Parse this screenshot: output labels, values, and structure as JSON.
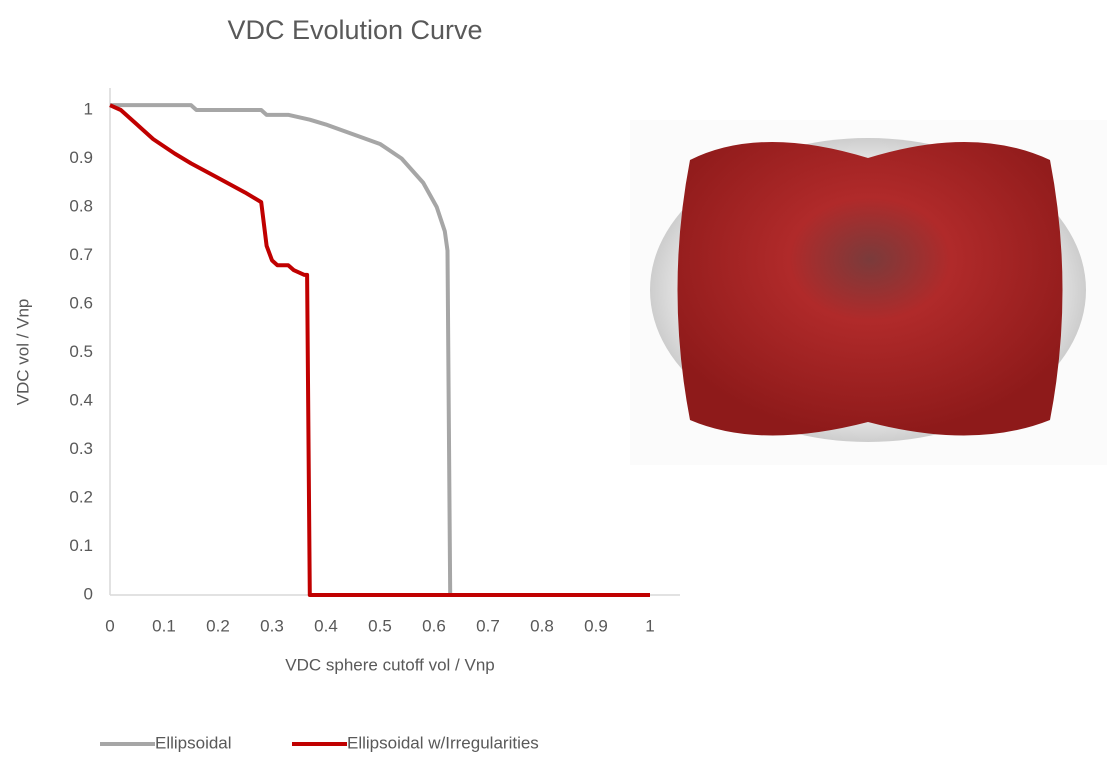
{
  "chart_data": {
    "type": "line",
    "title": "VDC Evolution Curve",
    "x_label": "VDC sphere cutoff vol / Vnp",
    "y_label": "VDC vol / Vnp",
    "xlim": [
      0,
      1
    ],
    "ylim": [
      0,
      1
    ],
    "xticks": [
      0,
      0.1,
      0.2,
      0.3,
      0.4,
      0.5,
      0.6,
      0.7,
      0.8,
      0.9,
      1
    ],
    "yticks": [
      0,
      0.1,
      0.2,
      0.3,
      0.4,
      0.5,
      0.6,
      0.7,
      0.8,
      0.9,
      1
    ],
    "grid": false,
    "legend": "bottom",
    "series": [
      {
        "name": "Ellipsoidal",
        "color": "#a6a6a6",
        "x": [
          0,
          0.15,
          0.16,
          0.28,
          0.29,
          0.33,
          0.37,
          0.4,
          0.45,
          0.5,
          0.54,
          0.58,
          0.605,
          0.62,
          0.625,
          0.63,
          0.63,
          1
        ],
        "values": [
          1.01,
          1.01,
          1.0,
          1.0,
          0.99,
          0.99,
          0.98,
          0.97,
          0.95,
          0.93,
          0.9,
          0.85,
          0.8,
          0.75,
          0.71,
          0,
          0,
          0
        ]
      },
      {
        "name": "Ellipsoidal w/Irregularities",
        "color": "#c00000",
        "x": [
          0,
          0.02,
          0.05,
          0.08,
          0.12,
          0.15,
          0.2,
          0.25,
          0.28,
          0.29,
          0.3,
          0.31,
          0.33,
          0.34,
          0.36,
          0.365,
          0.37,
          1
        ],
        "values": [
          1.01,
          1.0,
          0.97,
          0.94,
          0.91,
          0.89,
          0.86,
          0.83,
          0.81,
          0.72,
          0.69,
          0.68,
          0.68,
          0.67,
          0.66,
          0.66,
          0,
          0
        ]
      }
    ]
  }
}
